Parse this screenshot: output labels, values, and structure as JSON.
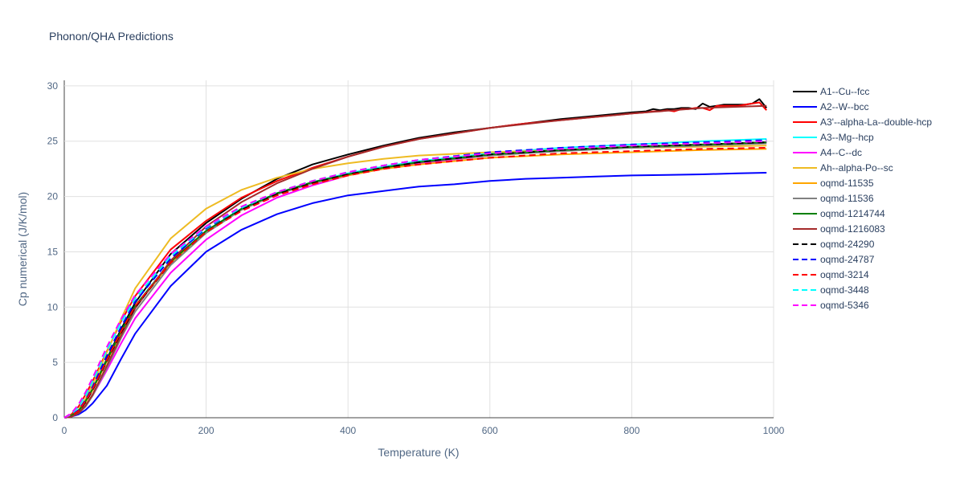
{
  "chart_data": {
    "type": "line",
    "title": "Phonon/QHA Predictions",
    "xlabel": "Temperature (K)",
    "ylabel": "Cp numerical (J/K/mol)",
    "xlim": [
      0,
      1000
    ],
    "ylim": [
      0,
      30.5
    ],
    "x_ticks": [
      0,
      200,
      400,
      600,
      800,
      1000
    ],
    "y_ticks": [
      0,
      5,
      10,
      15,
      20,
      25,
      30
    ],
    "grid": true,
    "legend_position": "right",
    "series": [
      {
        "name": "A1--Cu--fcc",
        "color": "#000000",
        "dash": "solid",
        "x": [
          0,
          10,
          20,
          30,
          40,
          60,
          80,
          100,
          150,
          200,
          250,
          300,
          350,
          400,
          450,
          500,
          550,
          600,
          650,
          700,
          750,
          800,
          820,
          830,
          840,
          850,
          860,
          870,
          880,
          890,
          900,
          910,
          920,
          930,
          940,
          950,
          960,
          970,
          980,
          990
        ],
        "y": [
          0,
          0.1,
          0.5,
          1.4,
          2.6,
          5.3,
          8.0,
          10.4,
          14.8,
          17.6,
          19.8,
          21.6,
          22.9,
          23.8,
          24.6,
          25.3,
          25.8,
          26.2,
          26.6,
          27.0,
          27.3,
          27.6,
          27.7,
          27.9,
          27.8,
          27.9,
          27.9,
          28.0,
          28.0,
          27.9,
          28.4,
          28.1,
          28.2,
          28.3,
          28.3,
          28.3,
          28.3,
          28.4,
          28.8,
          28.0
        ]
      },
      {
        "name": "A2--W--bcc",
        "color": "#0000ff",
        "dash": "solid",
        "x": [
          0,
          10,
          20,
          30,
          40,
          60,
          80,
          100,
          150,
          200,
          250,
          300,
          350,
          400,
          450,
          500,
          550,
          600,
          650,
          700,
          750,
          800,
          850,
          900,
          950,
          990
        ],
        "y": [
          0,
          0.1,
          0.3,
          0.7,
          1.3,
          2.9,
          5.3,
          7.6,
          11.9,
          15.0,
          17.0,
          18.4,
          19.4,
          20.1,
          20.5,
          20.9,
          21.1,
          21.4,
          21.6,
          21.7,
          21.8,
          21.9,
          21.95,
          22.0,
          22.1,
          22.15
        ]
      },
      {
        "name": "A3'--alpha-La--double-hcp",
        "color": "#ff0000",
        "dash": "solid",
        "x": [
          0,
          10,
          20,
          30,
          40,
          60,
          80,
          100,
          150,
          200,
          250,
          300,
          350,
          400,
          450,
          500,
          550,
          600,
          650,
          700,
          750,
          800,
          820,
          830,
          840,
          850,
          860,
          870,
          880,
          890,
          900,
          910,
          920,
          930,
          940,
          950,
          960,
          970,
          980,
          990
        ],
        "y": [
          0,
          0.3,
          1.0,
          2.1,
          3.3,
          6.0,
          8.7,
          11.0,
          15.2,
          17.8,
          19.9,
          21.4,
          22.6,
          23.6,
          24.5,
          25.2,
          25.7,
          26.2,
          26.6,
          26.9,
          27.2,
          27.5,
          27.6,
          27.7,
          27.7,
          27.8,
          27.7,
          27.9,
          27.9,
          28.0,
          28.0,
          27.8,
          28.2,
          28.2,
          28.2,
          28.2,
          28.3,
          28.4,
          28.5,
          27.8
        ]
      },
      {
        "name": "A3--Mg--hcp",
        "color": "#00ffff",
        "dash": "solid",
        "x": [
          0,
          10,
          20,
          30,
          40,
          60,
          80,
          100,
          150,
          200,
          250,
          300,
          350,
          400,
          450,
          500,
          600,
          700,
          800,
          900,
          990
        ],
        "y": [
          0,
          0.2,
          0.6,
          1.5,
          2.6,
          5.2,
          7.8,
          10.1,
          14.1,
          16.9,
          18.9,
          20.3,
          21.3,
          22.1,
          22.7,
          23.2,
          23.9,
          24.4,
          24.7,
          25.0,
          25.2
        ]
      },
      {
        "name": "A4--C--dc",
        "color": "#ff00ff",
        "dash": "solid",
        "x": [
          0,
          10,
          20,
          30,
          40,
          60,
          80,
          100,
          150,
          200,
          250,
          300,
          350,
          400,
          450,
          500,
          600,
          700,
          800,
          900,
          990
        ],
        "y": [
          0,
          0.1,
          0.4,
          1.1,
          2.0,
          4.3,
          6.7,
          9.0,
          13.1,
          16.1,
          18.3,
          19.9,
          21.0,
          21.9,
          22.5,
          23.0,
          23.7,
          24.2,
          24.5,
          24.7,
          24.9
        ]
      },
      {
        "name": "Ah--alpha-Po--sc",
        "color": "#eebb22",
        "dash": "solid",
        "x": [
          0,
          10,
          20,
          30,
          40,
          60,
          80,
          100,
          150,
          200,
          250,
          300,
          350,
          400,
          450,
          500,
          600,
          700,
          800,
          900,
          990
        ],
        "y": [
          0,
          0.2,
          0.7,
          1.7,
          3.0,
          5.9,
          8.9,
          11.7,
          16.2,
          18.9,
          20.6,
          21.7,
          22.5,
          23.0,
          23.4,
          23.7,
          24.0,
          24.2,
          24.4,
          24.5,
          24.6
        ]
      },
      {
        "name": "oqmd-11535",
        "color": "#ffa500",
        "dash": "solid",
        "x": [
          0,
          10,
          20,
          30,
          40,
          60,
          80,
          100,
          150,
          200,
          250,
          300,
          350,
          400,
          450,
          500,
          600,
          700,
          800,
          900,
          990
        ],
        "y": [
          0,
          0.2,
          0.6,
          1.4,
          2.5,
          5.1,
          7.7,
          10.0,
          14.0,
          16.8,
          18.8,
          20.2,
          21.2,
          21.9,
          22.5,
          22.9,
          23.5,
          23.8,
          24.0,
          24.2,
          24.3
        ]
      },
      {
        "name": "oqmd-11536",
        "color": "#808080",
        "dash": "solid",
        "x": [
          0,
          10,
          20,
          30,
          40,
          60,
          80,
          100,
          150,
          200,
          250,
          300,
          350,
          400,
          450,
          500,
          600,
          700,
          800,
          900,
          990
        ],
        "y": [
          0,
          0.1,
          0.4,
          1.0,
          2.0,
          4.5,
          7.2,
          9.6,
          13.8,
          16.7,
          18.8,
          20.2,
          21.2,
          22.0,
          22.6,
          23.1,
          23.7,
          24.1,
          24.4,
          24.6,
          24.8
        ]
      },
      {
        "name": "oqmd-1214744",
        "color": "#008000",
        "dash": "solid",
        "x": [
          0,
          10,
          20,
          30,
          40,
          60,
          80,
          100,
          150,
          200,
          250,
          300,
          350,
          400,
          450,
          500,
          600,
          700,
          800,
          900,
          990
        ],
        "y": [
          0,
          0.2,
          0.6,
          1.5,
          2.6,
          5.2,
          7.8,
          10.1,
          14.1,
          16.9,
          18.9,
          20.3,
          21.3,
          22.0,
          22.6,
          23.1,
          23.8,
          24.2,
          24.5,
          24.7,
          24.9
        ]
      },
      {
        "name": "oqmd-1216083",
        "color": "#a52a2a",
        "dash": "solid",
        "x": [
          0,
          10,
          20,
          30,
          40,
          60,
          80,
          100,
          150,
          200,
          250,
          300,
          350,
          400,
          450,
          500,
          600,
          700,
          800,
          900,
          990
        ],
        "y": [
          0,
          0.1,
          0.4,
          1.1,
          2.1,
          4.7,
          7.4,
          9.9,
          14.2,
          17.3,
          19.5,
          21.2,
          22.5,
          23.6,
          24.5,
          25.2,
          26.2,
          26.9,
          27.5,
          28.0,
          28.2
        ]
      },
      {
        "name": "oqmd-24290",
        "color": "#000000",
        "dash": "dash",
        "x": [
          0,
          10,
          20,
          30,
          40,
          60,
          80,
          100,
          150,
          200,
          250,
          300,
          350,
          400,
          450,
          500,
          600,
          700,
          800,
          900,
          990
        ],
        "y": [
          0,
          0.2,
          0.6,
          1.4,
          2.5,
          5.1,
          7.7,
          10.0,
          14.0,
          16.8,
          18.8,
          20.2,
          21.2,
          22.0,
          22.6,
          23.1,
          23.8,
          24.2,
          24.5,
          24.7,
          24.9
        ]
      },
      {
        "name": "oqmd-24787",
        "color": "#0000ff",
        "dash": "dash",
        "x": [
          0,
          10,
          20,
          30,
          40,
          60,
          80,
          100,
          150,
          200,
          250,
          300,
          350,
          400,
          450,
          500,
          600,
          700,
          800,
          900,
          990
        ],
        "y": [
          0,
          0.2,
          0.7,
          1.6,
          2.8,
          5.6,
          8.2,
          10.5,
          14.4,
          17.1,
          19.0,
          20.4,
          21.4,
          22.2,
          22.8,
          23.3,
          24.0,
          24.4,
          24.7,
          24.9,
          25.1
        ]
      },
      {
        "name": "oqmd-3214",
        "color": "#ff0000",
        "dash": "dash",
        "x": [
          0,
          10,
          20,
          30,
          40,
          60,
          80,
          100,
          150,
          200,
          250,
          300,
          350,
          400,
          450,
          500,
          600,
          700,
          800,
          900,
          990
        ],
        "y": [
          0,
          0.2,
          0.6,
          1.5,
          2.6,
          5.2,
          7.8,
          10.1,
          14.0,
          16.8,
          18.7,
          20.1,
          21.1,
          21.9,
          22.5,
          22.9,
          23.5,
          23.9,
          24.1,
          24.3,
          24.4
        ]
      },
      {
        "name": "oqmd-3448",
        "color": "#00ffff",
        "dash": "dash",
        "x": [
          0,
          10,
          20,
          30,
          40,
          60,
          80,
          100,
          150,
          200,
          250,
          300,
          350,
          400,
          450,
          500,
          600,
          700,
          800,
          900,
          990
        ],
        "y": [
          0,
          0.3,
          1.0,
          2.0,
          3.3,
          6.1,
          8.6,
          10.8,
          14.6,
          17.2,
          19.0,
          20.4,
          21.4,
          22.2,
          22.8,
          23.3,
          23.9,
          24.3,
          24.6,
          24.8,
          25.0
        ]
      },
      {
        "name": "oqmd-5346",
        "color": "#ff00ff",
        "dash": "dash",
        "x": [
          0,
          10,
          20,
          30,
          40,
          60,
          80,
          100,
          150,
          200,
          250,
          300,
          350,
          400,
          450,
          500,
          600,
          700,
          800,
          900,
          990
        ],
        "y": [
          0,
          0.4,
          1.2,
          2.3,
          3.6,
          6.4,
          8.9,
          11.1,
          14.8,
          17.3,
          19.1,
          20.4,
          21.4,
          22.2,
          22.8,
          23.3,
          23.9,
          24.3,
          24.6,
          24.8,
          25.0
        ]
      }
    ]
  }
}
